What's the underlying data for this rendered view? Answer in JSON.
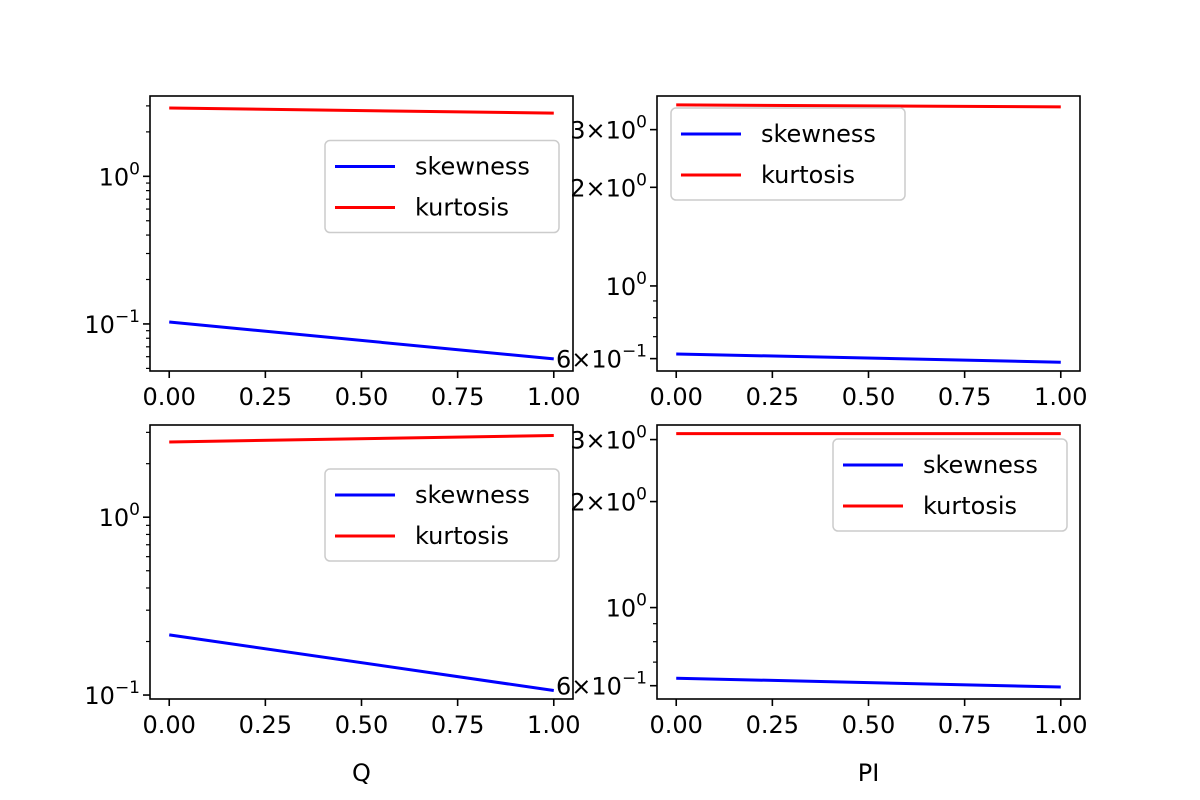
{
  "chart_data": [
    {
      "type": "line",
      "yscale": "log",
      "xlim": [
        -0.05,
        1.05
      ],
      "ylim": [
        0.048,
        3.5
      ],
      "xticks": [
        {
          "value": 0.0,
          "label": "0.00"
        },
        {
          "value": 0.25,
          "label": "0.25"
        },
        {
          "value": 0.5,
          "label": "0.50"
        },
        {
          "value": 0.75,
          "label": "0.75"
        },
        {
          "value": 1.0,
          "label": "1.00"
        }
      ],
      "yticks": [
        {
          "value": 0.1,
          "base": "10",
          "exp": "−1"
        },
        {
          "value": 1.0,
          "base": "10",
          "exp": "0"
        }
      ],
      "xlabel": "",
      "legend": "center-right",
      "series": [
        {
          "name": "skewness",
          "color": "#0000ff",
          "x": [
            0,
            1
          ],
          "y": [
            0.103,
            0.058
          ]
        },
        {
          "name": "kurtosis",
          "color": "#ff0000",
          "x": [
            0,
            1
          ],
          "y": [
            2.9,
            2.68
          ]
        }
      ]
    },
    {
      "type": "line",
      "yscale": "log",
      "xlim": [
        -0.05,
        1.05
      ],
      "ylim": [
        0.55,
        3.8
      ],
      "xticks": [
        {
          "value": 0.0,
          "label": "0.00"
        },
        {
          "value": 0.25,
          "label": "0.25"
        },
        {
          "value": 0.5,
          "label": "0.50"
        },
        {
          "value": 0.75,
          "label": "0.75"
        },
        {
          "value": 1.0,
          "label": "1.00"
        }
      ],
      "yticks": [
        {
          "value": 0.6,
          "prefix": "6×",
          "base": "10",
          "exp": "−1"
        },
        {
          "value": 1.0,
          "base": "10",
          "exp": "0"
        },
        {
          "value": 2.0,
          "prefix": "2×",
          "base": "10",
          "exp": "0"
        },
        {
          "value": 3.0,
          "prefix": "3×",
          "base": "10",
          "exp": "0"
        }
      ],
      "xlabel": "",
      "legend": "upper-left",
      "series": [
        {
          "name": "skewness",
          "color": "#0000ff",
          "x": [
            0,
            1
          ],
          "y": [
            0.62,
            0.585
          ]
        },
        {
          "name": "kurtosis",
          "color": "#ff0000",
          "x": [
            0,
            1
          ],
          "y": [
            3.57,
            3.52
          ]
        }
      ]
    },
    {
      "type": "line",
      "yscale": "log",
      "xlim": [
        -0.05,
        1.05
      ],
      "ylim": [
        0.095,
        3.3
      ],
      "xticks": [
        {
          "value": 0.0,
          "label": "0.00"
        },
        {
          "value": 0.25,
          "label": "0.25"
        },
        {
          "value": 0.5,
          "label": "0.50"
        },
        {
          "value": 0.75,
          "label": "0.75"
        },
        {
          "value": 1.0,
          "label": "1.00"
        }
      ],
      "yticks": [
        {
          "value": 0.1,
          "base": "10",
          "exp": "−1"
        },
        {
          "value": 1.0,
          "base": "10",
          "exp": "0"
        }
      ],
      "xlabel": "Q",
      "legend": "center-right",
      "series": [
        {
          "name": "skewness",
          "color": "#0000ff",
          "x": [
            0,
            1
          ],
          "y": [
            0.218,
            0.106
          ]
        },
        {
          "name": "kurtosis",
          "color": "#ff0000",
          "x": [
            0,
            1
          ],
          "y": [
            2.65,
            2.88
          ]
        }
      ]
    },
    {
      "type": "line",
      "yscale": "log",
      "xlim": [
        -0.05,
        1.05
      ],
      "ylim": [
        0.55,
        3.3
      ],
      "xticks": [
        {
          "value": 0.0,
          "label": "0.00"
        },
        {
          "value": 0.25,
          "label": "0.25"
        },
        {
          "value": 0.5,
          "label": "0.50"
        },
        {
          "value": 0.75,
          "label": "0.75"
        },
        {
          "value": 1.0,
          "label": "1.00"
        }
      ],
      "yticks": [
        {
          "value": 0.6,
          "prefix": "6×",
          "base": "10",
          "exp": "−1"
        },
        {
          "value": 1.0,
          "base": "10",
          "exp": "0"
        },
        {
          "value": 2.0,
          "prefix": "2×",
          "base": "10",
          "exp": "0"
        },
        {
          "value": 3.0,
          "prefix": "3×",
          "base": "10",
          "exp": "0"
        }
      ],
      "xlabel": "PI",
      "legend": "upper-right",
      "series": [
        {
          "name": "skewness",
          "color": "#0000ff",
          "x": [
            0,
            1
          ],
          "y": [
            0.63,
            0.595
          ]
        },
        {
          "name": "kurtosis",
          "color": "#ff0000",
          "x": [
            0,
            1
          ],
          "y": [
            3.12,
            3.12
          ]
        }
      ]
    }
  ]
}
